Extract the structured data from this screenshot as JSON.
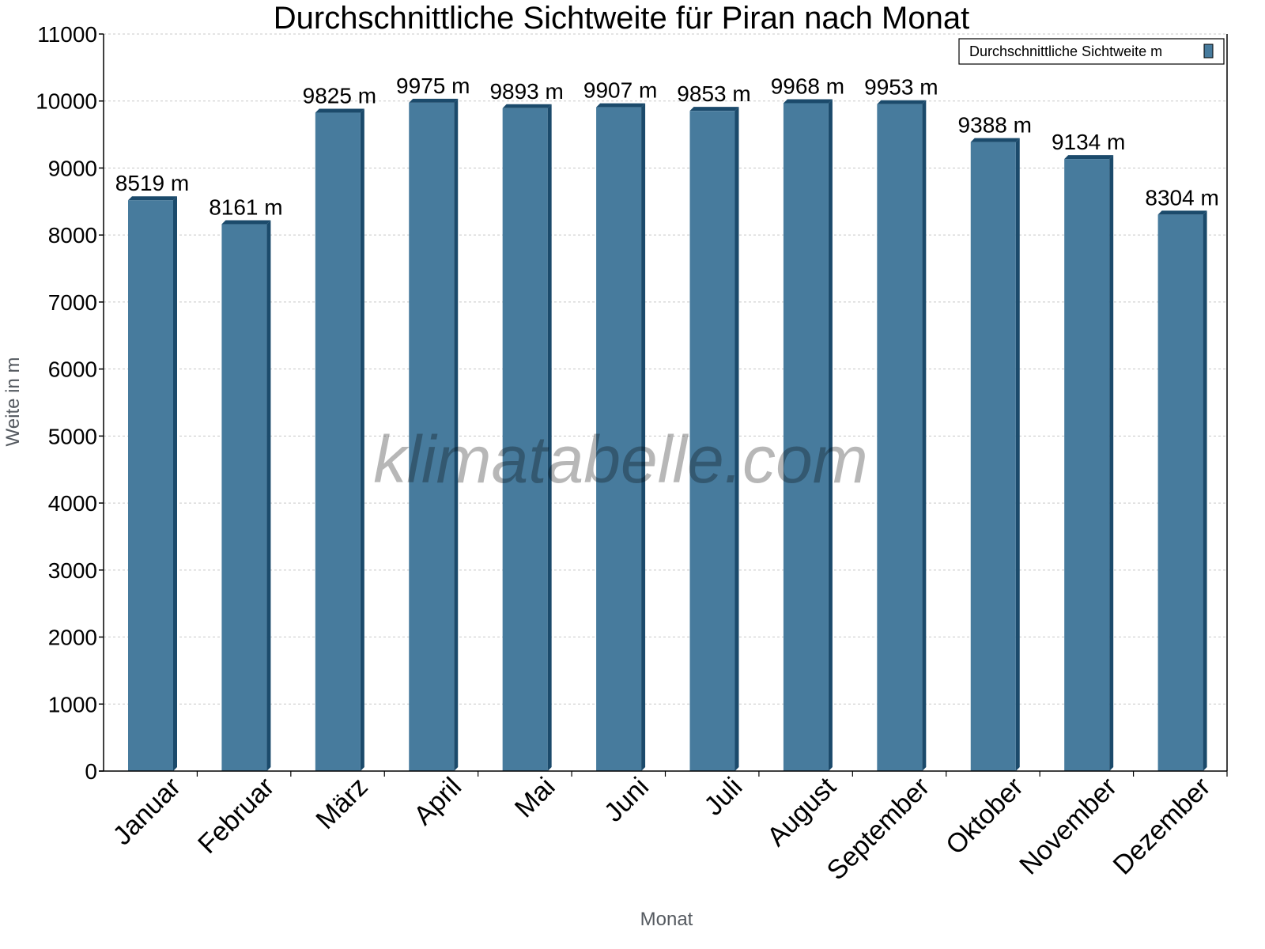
{
  "chart_data": {
    "type": "bar",
    "title": "Durchschnittliche Sichtweite für Piran nach Monat",
    "xlabel": "Monat",
    "ylabel": "Weite in m",
    "ylim": [
      0,
      11000
    ],
    "yticks": [
      0,
      1000,
      2000,
      3000,
      4000,
      5000,
      6000,
      7000,
      8000,
      9000,
      10000,
      11000
    ],
    "grid": true,
    "legend_position": "top-right",
    "categories": [
      "Januar",
      "Februar",
      "März",
      "April",
      "Mai",
      "Juni",
      "Juli",
      "August",
      "September",
      "Oktober",
      "November",
      "Dezember"
    ],
    "series": [
      {
        "name": "Durchschnittliche Sichtweite m",
        "values": [
          8519,
          8161,
          9825,
          9975,
          9893,
          9907,
          9853,
          9968,
          9953,
          9388,
          9134,
          8304
        ]
      }
    ],
    "data_labels": [
      "8519 m",
      "8161 m",
      "9825 m",
      "9975 m",
      "9893 m",
      "9907 m",
      "9853 m",
      "9968 m",
      "9953 m",
      "9388 m",
      "9134 m",
      "8304 m"
    ],
    "colors": {
      "bar_front": "#477b9d",
      "bar_side": "#1b4a6b"
    },
    "watermark": "klimatabelle.com"
  }
}
